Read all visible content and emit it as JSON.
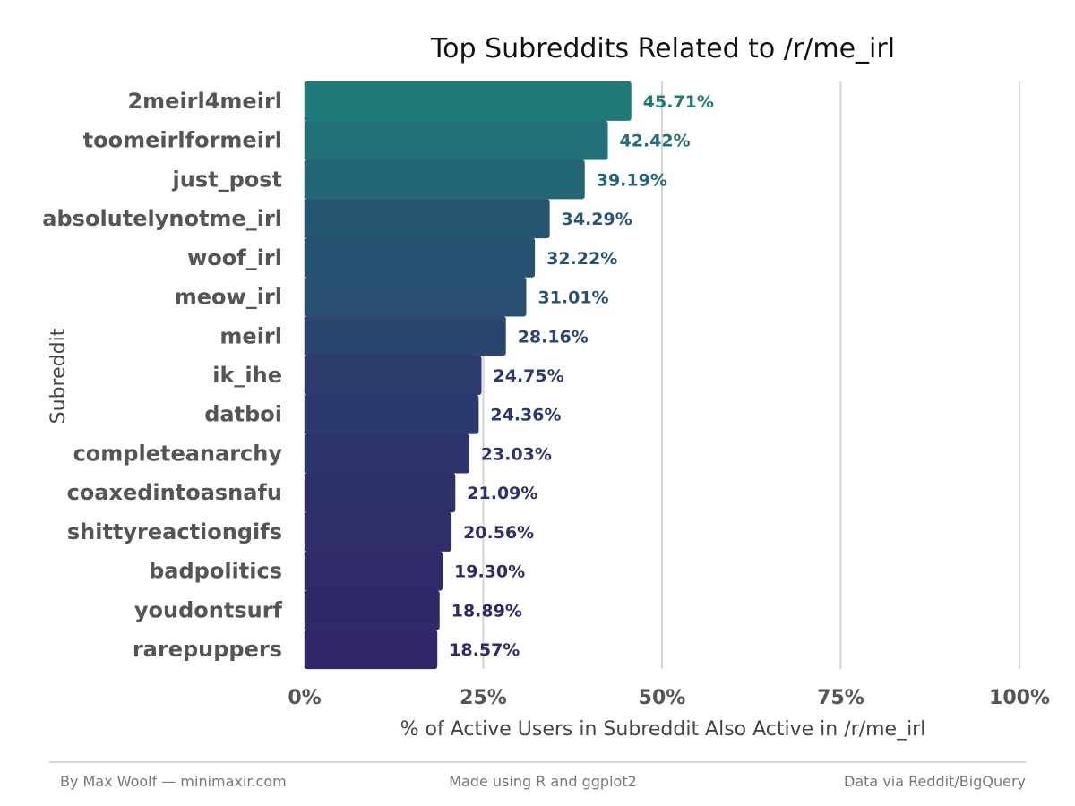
{
  "chart_data": {
    "type": "bar",
    "orientation": "horizontal",
    "title": "Top Subreddits Related to /r/me_irl",
    "xlabel": "% of Active Users in Subreddit Also Active in /r/me_irl",
    "ylabel": "Subreddit",
    "xlim": [
      0,
      100
    ],
    "x_ticks": [
      0,
      25,
      50,
      75,
      100
    ],
    "x_tick_labels": [
      "0%",
      "25%",
      "50%",
      "75%",
      "100%"
    ],
    "grid": "vertical major gridlines",
    "categories": [
      "2meirl4meirl",
      "toomeirlformeirl",
      "just_post",
      "absolutelynotme_irl",
      "woof_irl",
      "meow_irl",
      "meirl",
      "ik_ihe",
      "datboi",
      "completeanarchy",
      "coaxedintoasnafu",
      "shittyreactiongifs",
      "badpolitics",
      "youdontsurf",
      "rarepuppers"
    ],
    "values": [
      45.71,
      42.42,
      39.19,
      34.29,
      32.22,
      31.01,
      28.16,
      24.75,
      24.36,
      23.03,
      21.09,
      20.56,
      19.3,
      18.89,
      18.57
    ],
    "value_labels": [
      "45.71%",
      "42.42%",
      "39.19%",
      "34.29%",
      "32.22%",
      "31.01%",
      "28.16%",
      "24.75%",
      "24.36%",
      "23.03%",
      "21.09%",
      "20.56%",
      "19.30%",
      "18.89%",
      "18.57%"
    ],
    "color_scale": {
      "low": "#302868",
      "high": "#1f7a7a"
    }
  },
  "footer": {
    "left": "By Max Woolf — minimaxir.com",
    "center": "Made using R and ggplot2",
    "right": "Data via Reddit/BigQuery"
  }
}
